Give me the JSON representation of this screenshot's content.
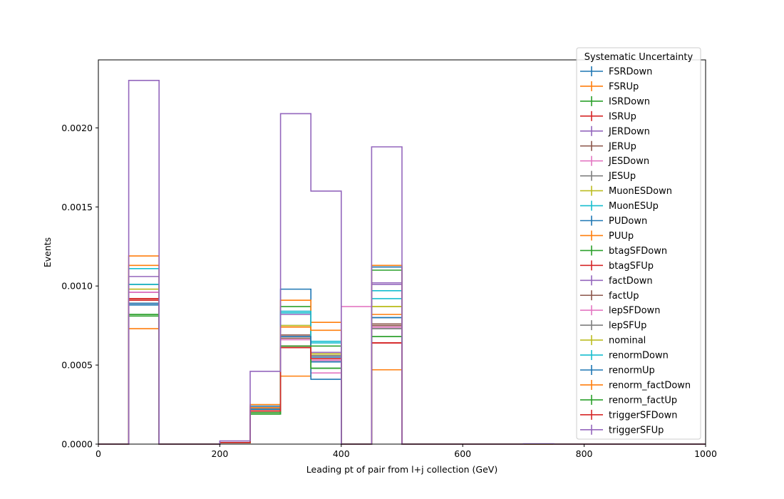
{
  "chart_data": {
    "type": "histogram-step",
    "xlabel": "Leading pt of pair from l+j collection (GeV)",
    "ylabel": "Events",
    "xlim": [
      0,
      1000
    ],
    "ylim": [
      0,
      0.00243
    ],
    "x_ticks": [
      0,
      200,
      400,
      600,
      800,
      1000
    ],
    "x_tick_labels": [
      "0",
      "200",
      "400",
      "600",
      "800",
      "1000"
    ],
    "y_ticks": [
      0,
      0.0005,
      0.001,
      0.0015,
      0.002
    ],
    "y_tick_labels": [
      "0.0000",
      "0.0005",
      "0.0010",
      "0.0015",
      "0.0020"
    ],
    "bin_edges": [
      0,
      50,
      100,
      150,
      200,
      250,
      300,
      350,
      400,
      450,
      500,
      550,
      600,
      650,
      700,
      750,
      800,
      850,
      900,
      950,
      1000
    ],
    "grid": false,
    "legend": {
      "title": "Systematic Uncertainty",
      "placement": "upper right"
    },
    "series": [
      {
        "name": "FSRDown",
        "color": "#1f77b4",
        "values": [
          0,
          0.00089,
          0,
          0,
          1e-05,
          0.00023,
          0.00075,
          0.00055,
          0,
          0.0008,
          0,
          0,
          0,
          0,
          0,
          0,
          0,
          0,
          0,
          0
        ]
      },
      {
        "name": "FSRUp",
        "color": "#ff7f0e",
        "values": [
          0,
          0.00073,
          0,
          0,
          1e-05,
          0.00021,
          0.00043,
          0.00058,
          0,
          0.00047,
          0,
          0,
          0,
          0,
          0,
          0,
          0,
          0,
          0,
          0
        ]
      },
      {
        "name": "ISRDown",
        "color": "#2ca02c",
        "values": [
          0,
          0.00082,
          0,
          0,
          1e-05,
          0.0002,
          0.00087,
          0.00062,
          0,
          0.0011,
          0,
          0,
          0,
          0,
          0,
          0,
          0,
          0,
          0,
          0
        ]
      },
      {
        "name": "ISRUp",
        "color": "#d62728",
        "values": [
          0,
          0.00092,
          0,
          0,
          1e-05,
          0.00021,
          0.00061,
          0.00054,
          0,
          0.00064,
          0,
          0,
          0,
          0,
          0,
          0,
          0,
          0,
          0,
          0
        ]
      },
      {
        "name": "JERDown",
        "color": "#9467bd",
        "values": [
          0,
          0.00106,
          0,
          0,
          1e-05,
          0.00023,
          0.00084,
          0.00058,
          0,
          0.00102,
          0,
          0,
          0,
          0,
          0,
          0,
          0,
          0,
          0,
          0
        ]
      },
      {
        "name": "JERUp",
        "color": "#8c564b",
        "values": [
          0,
          0.00091,
          0,
          0,
          1e-05,
          0.00022,
          0.00069,
          0.00053,
          0,
          0.00076,
          0,
          0,
          0,
          0,
          0,
          0,
          0,
          0,
          0,
          0
        ]
      },
      {
        "name": "JESDown",
        "color": "#e377c2",
        "values": [
          0,
          0.00096,
          0,
          0,
          1e-05,
          0.00022,
          0.00066,
          0.00045,
          0.00087,
          0.00074,
          0,
          0,
          0,
          0,
          0,
          0,
          0,
          0,
          0,
          0
        ]
      },
      {
        "name": "JESUp",
        "color": "#7f7f7f",
        "values": [
          0,
          0.00101,
          0,
          0,
          1e-05,
          0.00022,
          0.00068,
          0.00056,
          0,
          0.00073,
          0,
          0,
          0,
          0,
          0,
          0,
          0,
          0,
          0,
          0
        ]
      },
      {
        "name": "MuonESDown",
        "color": "#bcbd22",
        "values": [
          0,
          0.00098,
          0,
          0,
          1e-05,
          0.00022,
          0.00075,
          0.00057,
          0,
          0.00087,
          0,
          0,
          0,
          0,
          0,
          0,
          0,
          0,
          0,
          0
        ]
      },
      {
        "name": "MuonESUp",
        "color": "#17becf",
        "values": [
          0,
          0.00111,
          0,
          0,
          1e-05,
          0.00022,
          0.00083,
          0.00065,
          0,
          0.00097,
          0,
          0,
          0,
          0,
          0,
          0,
          0,
          0,
          0,
          0
        ]
      },
      {
        "name": "PUDown",
        "color": "#1f77b4",
        "values": [
          0,
          0.00088,
          0,
          0,
          1e-05,
          0.00024,
          0.00098,
          0.00041,
          0,
          0.00112,
          0,
          0,
          0,
          0,
          0,
          0,
          0,
          0,
          0,
          0
        ]
      },
      {
        "name": "PUUp",
        "color": "#ff7f0e",
        "values": [
          0,
          0.00119,
          0,
          0,
          1e-05,
          0.00025,
          0.00091,
          0.00077,
          0,
          0.00082,
          0,
          0,
          0,
          0,
          0,
          0,
          0,
          0,
          0,
          0
        ]
      },
      {
        "name": "btagSFDown",
        "color": "#2ca02c",
        "values": [
          0,
          0.00082,
          0,
          0,
          1e-05,
          0.00019,
          0.00062,
          0.00048,
          0,
          0.00068,
          0,
          0,
          0,
          0,
          0,
          0,
          0,
          0,
          0,
          0
        ]
      },
      {
        "name": "btagSFUp",
        "color": "#d62728",
        "values": [
          0,
          0.00091,
          0,
          0,
          1e-05,
          0.00021,
          0.00062,
          0.00056,
          0,
          0.00064,
          0,
          0,
          0,
          0,
          0,
          0,
          0,
          0,
          0,
          0
        ]
      },
      {
        "name": "factDown",
        "color": "#9467bd",
        "values": [
          0,
          0.00096,
          0,
          0,
          1e-05,
          0.00022,
          0.00082,
          0.00053,
          0,
          0.00101,
          0,
          0,
          0,
          0,
          0,
          0,
          0,
          0,
          0,
          0
        ]
      },
      {
        "name": "factUp",
        "color": "#8c564b",
        "values": [
          0,
          0.00089,
          0,
          0,
          1e-05,
          0.00022,
          0.00067,
          0.00052,
          0,
          0.00075,
          0,
          0,
          0,
          0,
          0,
          0,
          0,
          0,
          0,
          0
        ]
      },
      {
        "name": "lepSFDown",
        "color": "#e377c2",
        "values": [
          0,
          0.00096,
          0,
          0,
          1e-05,
          0.00022,
          0.00068,
          0.00053,
          0,
          0.00074,
          0,
          0,
          0,
          0,
          0,
          0,
          0,
          0,
          0,
          0
        ]
      },
      {
        "name": "lepSFUp",
        "color": "#7f7f7f",
        "values": [
          0,
          0.00101,
          0,
          0,
          1e-05,
          0.00022,
          0.00068,
          0.00056,
          0,
          0.00073,
          0,
          0,
          0,
          0,
          0,
          0,
          0,
          0,
          0,
          0
        ]
      },
      {
        "name": "nominal",
        "color": "#bcbd22",
        "values": [
          0,
          0.00098,
          0,
          0,
          1e-05,
          0.00022,
          0.00075,
          0.00057,
          0,
          0.00087,
          0,
          0,
          0,
          0,
          0,
          0,
          0,
          0,
          0,
          0
        ]
      },
      {
        "name": "renormDown",
        "color": "#17becf",
        "values": [
          0,
          0.00101,
          0,
          0,
          1e-05,
          0.00022,
          0.00084,
          0.00064,
          0,
          0.00092,
          0,
          0,
          0,
          0,
          0,
          0,
          0,
          0,
          0,
          0
        ]
      },
      {
        "name": "renormUp",
        "color": "#1f77b4",
        "values": [
          0,
          0.00089,
          0,
          0,
          1e-05,
          0.00022,
          0.00068,
          0.00052,
          0,
          0.0008,
          0,
          0,
          0,
          0,
          0,
          0,
          0,
          0,
          0,
          0
        ]
      },
      {
        "name": "renorm_factDown",
        "color": "#ff7f0e",
        "values": [
          0,
          0.00113,
          0,
          0,
          1e-05,
          0.00023,
          0.00074,
          0.00072,
          0,
          0.00113,
          0,
          0,
          0,
          0,
          0,
          0,
          0,
          0,
          0,
          0
        ]
      },
      {
        "name": "renorm_factUp",
        "color": "#2ca02c",
        "values": [
          0,
          0.00081,
          0,
          0,
          1e-05,
          0.00019,
          0.00062,
          0.00048,
          0,
          0.00068,
          0,
          0,
          0,
          0,
          0,
          0,
          0,
          0,
          0,
          0
        ]
      },
      {
        "name": "triggerSFDown",
        "color": "#d62728",
        "values": [
          0,
          0.00092,
          0,
          0,
          1e-05,
          0.00021,
          0.00061,
          0.00054,
          0,
          0.00064,
          0,
          0,
          0,
          0,
          0,
          0,
          0,
          0,
          0,
          0
        ]
      },
      {
        "name": "triggerSFUp",
        "color": "#9467bd",
        "values": [
          0,
          0.0023,
          0,
          0,
          2e-05,
          0.00046,
          0.00209,
          0.0016,
          0,
          0.00188,
          0,
          0,
          0,
          0,
          2e-06,
          0,
          0,
          0,
          0,
          0
        ]
      }
    ]
  }
}
